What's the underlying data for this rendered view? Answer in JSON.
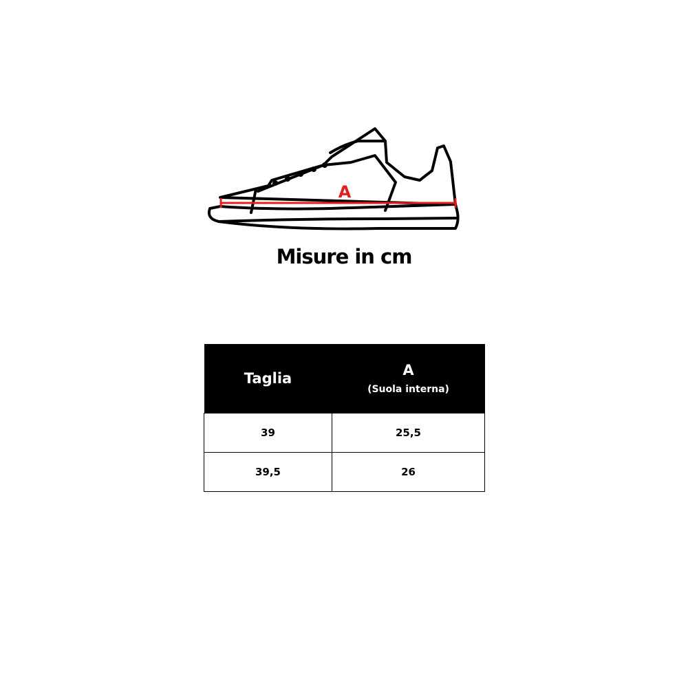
{
  "diagram": {
    "measure_label": "A",
    "measure_color": "#e02020"
  },
  "caption": "Misure in cm",
  "table": {
    "headers": [
      {
        "label": "Taglia"
      },
      {
        "label": "A",
        "sublabel": "(Suola interna)"
      }
    ],
    "rows": [
      [
        "39",
        "25,5"
      ],
      [
        "39,5",
        "26"
      ]
    ]
  }
}
